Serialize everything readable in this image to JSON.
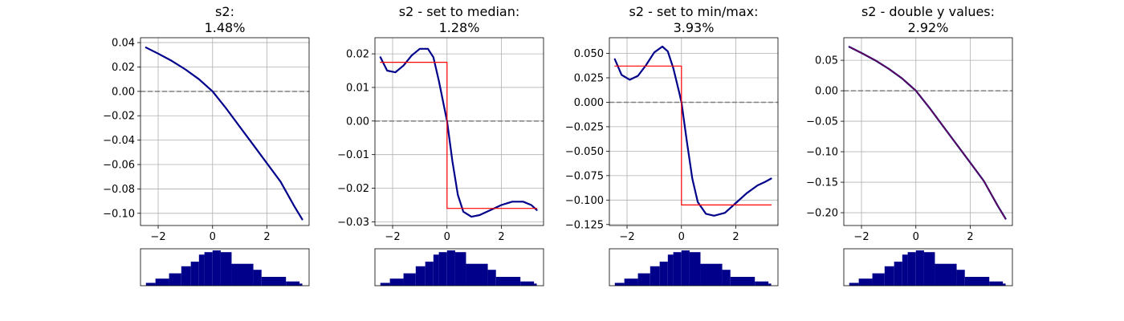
{
  "chart_data": [
    {
      "type": "line",
      "title": "s2:",
      "subtitle": "1.48%",
      "xlim": [
        -2.65,
        3.55
      ],
      "ylim": [
        -0.11,
        0.044
      ],
      "xticks": [
        -2,
        0,
        2
      ],
      "xtick_labels": [
        "−2",
        "0",
        "2"
      ],
      "yticks": [
        0.04,
        0.02,
        0.0,
        -0.02,
        -0.04,
        -0.06,
        -0.08,
        -0.1
      ],
      "ytick_labels": [
        "0.04",
        "0.02",
        "0.00",
        "−0.02",
        "−0.04",
        "−0.06",
        "−0.08",
        "−0.10"
      ],
      "grid": true,
      "reference_y": 0,
      "series": [
        {
          "color": "#00008b",
          "x": [
            -2.45,
            -2.0,
            -1.5,
            -1.0,
            -0.5,
            -0.25,
            0.0,
            0.5,
            1.0,
            1.5,
            2.0,
            2.5,
            3.0,
            3.3
          ],
          "y": [
            0.036,
            0.031,
            0.025,
            0.018,
            0.01,
            0.005,
            0.0,
            -0.014,
            -0.029,
            -0.044,
            -0.059,
            -0.074,
            -0.094,
            -0.105
          ]
        }
      ],
      "histogram": {
        "color": "#00008b",
        "heights": [
          0.08,
          0.2,
          0.35,
          0.55,
          0.68,
          0.88,
          0.95,
          1.0,
          0.95,
          0.62,
          0.45,
          0.25,
          0.12,
          0.06
        ],
        "bins": [
          -2.45,
          -2.1,
          -1.6,
          -1.15,
          -0.8,
          -0.5,
          -0.3,
          0.0,
          0.3,
          0.7,
          1.5,
          1.8,
          2.7,
          3.2,
          3.3
        ]
      }
    },
    {
      "type": "line",
      "title": "s2 - set to median:",
      "subtitle": "1.28%",
      "xlim": [
        -2.65,
        3.55
      ],
      "ylim": [
        -0.0311,
        0.0248
      ],
      "xticks": [
        -2,
        0,
        2
      ],
      "xtick_labels": [
        "−2",
        "0",
        "2"
      ],
      "yticks": [
        0.02,
        0.01,
        0.0,
        -0.01,
        -0.02,
        -0.03
      ],
      "ytick_labels": [
        "0.02",
        "0.01",
        "0.00",
        "−0.01",
        "−0.02",
        "−0.03"
      ],
      "grid": true,
      "reference_y": 0,
      "series": [
        {
          "color": "#00008b",
          "x": [
            -2.45,
            -2.2,
            -1.9,
            -1.6,
            -1.3,
            -1.0,
            -0.7,
            -0.5,
            -0.3,
            -0.1,
            0.0,
            0.2,
            0.4,
            0.6,
            0.9,
            1.2,
            1.6,
            2.0,
            2.4,
            2.8,
            3.1,
            3.3
          ],
          "y": [
            0.019,
            0.015,
            0.0145,
            0.0165,
            0.0195,
            0.0215,
            0.0215,
            0.019,
            0.012,
            0.004,
            0.0,
            -0.012,
            -0.022,
            -0.027,
            -0.0285,
            -0.028,
            -0.0265,
            -0.025,
            -0.024,
            -0.024,
            -0.025,
            -0.0265
          ]
        },
        {
          "color": "#ff0000",
          "step": true,
          "x": [
            -2.45,
            0.0,
            0.0,
            3.3
          ],
          "y": [
            0.0175,
            0.0175,
            -0.026,
            -0.026
          ]
        }
      ],
      "histogram": {
        "color": "#00008b",
        "heights": [
          0.08,
          0.2,
          0.35,
          0.55,
          0.68,
          0.88,
          0.95,
          1.0,
          0.95,
          0.62,
          0.45,
          0.25,
          0.12,
          0.06
        ],
        "bins": [
          -2.45,
          -2.1,
          -1.6,
          -1.15,
          -0.8,
          -0.5,
          -0.3,
          0.0,
          0.3,
          0.7,
          1.5,
          1.8,
          2.7,
          3.2,
          3.3
        ]
      }
    },
    {
      "type": "line",
      "title": "s2 - set to min/max:",
      "subtitle": "3.93%",
      "xlim": [
        -2.65,
        3.55
      ],
      "ylim": [
        -0.126,
        0.066
      ],
      "xticks": [
        -2,
        0,
        2
      ],
      "xtick_labels": [
        "−2",
        "0",
        "2"
      ],
      "yticks": [
        0.05,
        0.025,
        0.0,
        -0.025,
        -0.05,
        -0.075,
        -0.1,
        -0.125
      ],
      "ytick_labels": [
        "0.050",
        "0.025",
        "0.000",
        "−0.025",
        "−0.050",
        "−0.075",
        "−0.100",
        "−0.125"
      ],
      "grid": true,
      "reference_y": 0,
      "series": [
        {
          "color": "#00008b",
          "x": [
            -2.45,
            -2.2,
            -1.9,
            -1.6,
            -1.3,
            -1.0,
            -0.7,
            -0.5,
            -0.3,
            -0.1,
            0.0,
            0.2,
            0.4,
            0.6,
            0.9,
            1.2,
            1.6,
            2.0,
            2.4,
            2.8,
            3.1,
            3.3
          ],
          "y": [
            0.044,
            0.028,
            0.023,
            0.027,
            0.038,
            0.051,
            0.057,
            0.052,
            0.035,
            0.012,
            0.0,
            -0.04,
            -0.078,
            -0.102,
            -0.114,
            -0.116,
            -0.113,
            -0.103,
            -0.093,
            -0.085,
            -0.081,
            -0.078
          ]
        },
        {
          "color": "#ff0000",
          "step": true,
          "x": [
            -2.45,
            0.0,
            0.0,
            3.3
          ],
          "y": [
            0.037,
            0.037,
            -0.105,
            -0.105
          ]
        }
      ],
      "histogram": {
        "color": "#00008b",
        "heights": [
          0.08,
          0.2,
          0.35,
          0.55,
          0.68,
          0.88,
          0.95,
          1.0,
          0.95,
          0.62,
          0.45,
          0.25,
          0.12,
          0.06
        ],
        "bins": [
          -2.45,
          -2.1,
          -1.6,
          -1.15,
          -0.8,
          -0.5,
          -0.3,
          0.0,
          0.3,
          0.7,
          1.5,
          1.8,
          2.7,
          3.2,
          3.3
        ]
      }
    },
    {
      "type": "line",
      "title": "s2 - double y values:",
      "subtitle": "2.92%",
      "xlim": [
        -2.65,
        3.55
      ],
      "ylim": [
        -0.221,
        0.087
      ],
      "xticks": [
        -2,
        0,
        2
      ],
      "xtick_labels": [
        "−2",
        "0",
        "2"
      ],
      "yticks": [
        0.05,
        0.0,
        -0.05,
        -0.1,
        -0.15,
        -0.2
      ],
      "ytick_labels": [
        "0.05",
        "0.00",
        "−0.05",
        "−0.10",
        "−0.15",
        "−0.20"
      ],
      "grid": true,
      "reference_y": 0,
      "series": [
        {
          "color": "#00008b",
          "x": [
            -2.45,
            -2.0,
            -1.5,
            -1.0,
            -0.5,
            -0.25,
            0.0,
            0.5,
            1.0,
            1.5,
            2.0,
            2.5,
            3.0,
            3.3
          ],
          "y": [
            0.072,
            0.062,
            0.05,
            0.036,
            0.02,
            0.01,
            0.0,
            -0.028,
            -0.058,
            -0.088,
            -0.118,
            -0.148,
            -0.188,
            -0.21
          ]
        },
        {
          "color": "#ff0000",
          "x": [
            -2.45,
            -2.0,
            -1.5,
            -1.0,
            -0.5,
            -0.25,
            0.0,
            0.5,
            1.0,
            1.5,
            2.0,
            2.5,
            3.0,
            3.3
          ],
          "y": [
            0.072,
            0.062,
            0.05,
            0.036,
            0.02,
            0.01,
            0.0,
            -0.028,
            -0.058,
            -0.088,
            -0.118,
            -0.148,
            -0.188,
            -0.21
          ]
        }
      ],
      "histogram": {
        "color": "#00008b",
        "heights": [
          0.08,
          0.2,
          0.35,
          0.55,
          0.68,
          0.88,
          0.95,
          1.0,
          0.95,
          0.62,
          0.45,
          0.25,
          0.12,
          0.06
        ],
        "bins": [
          -2.45,
          -2.1,
          -1.6,
          -1.15,
          -0.8,
          -0.5,
          -0.3,
          0.0,
          0.3,
          0.7,
          1.5,
          1.8,
          2.7,
          3.2,
          3.3
        ]
      }
    }
  ]
}
